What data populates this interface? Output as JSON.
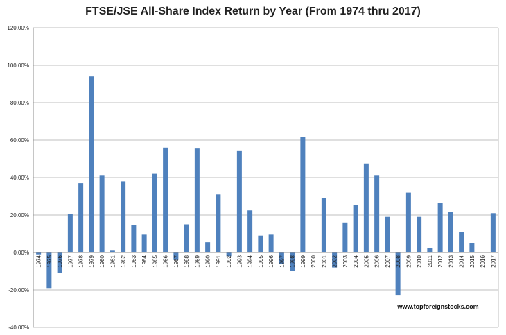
{
  "chart_data": {
    "type": "bar",
    "title": "FTSE/JSE All-Share Index Return by Year (From 1974 thru 2017)",
    "xlabel": "",
    "ylabel": "",
    "ylim": [
      -0.4,
      1.2
    ],
    "y_ticks": [
      -0.4,
      -0.2,
      0.0,
      0.2,
      0.4,
      0.6,
      0.8,
      1.0,
      1.2
    ],
    "y_tick_labels": [
      "-40.00%",
      "-20.00%",
      "0.00%",
      "20.00%",
      "40.00%",
      "60.00%",
      "80.00%",
      "100.00%",
      "120.00%"
    ],
    "grid": true,
    "bar_color": "#4f81bd",
    "categories": [
      "1974",
      "1975",
      "1976",
      "1977",
      "1978",
      "1979",
      "1980",
      "1981",
      "1982",
      "1983",
      "1984",
      "1985",
      "1986",
      "1987",
      "1988",
      "1989",
      "1990",
      "1991",
      "1992",
      "1993",
      "1994",
      "1995",
      "1996",
      "1997",
      "1998",
      "1999",
      "2000",
      "2001",
      "2002",
      "2003",
      "2004",
      "2005",
      "2006",
      "2007",
      "2008",
      "2009",
      "2010",
      "2011",
      "2012",
      "2013",
      "2014",
      "2015",
      "2016",
      "2017"
    ],
    "values": [
      -0.01,
      -0.19,
      -0.11,
      0.205,
      0.37,
      0.94,
      0.41,
      0.01,
      0.38,
      0.145,
      0.095,
      0.42,
      0.56,
      -0.04,
      0.15,
      0.555,
      0.055,
      0.31,
      -0.02,
      0.545,
      0.225,
      0.09,
      0.095,
      -0.06,
      -0.1,
      0.615,
      0.0,
      0.29,
      -0.08,
      0.16,
      0.255,
      0.475,
      0.41,
      0.19,
      -0.23,
      0.32,
      0.19,
      0.025,
      0.265,
      0.215,
      0.11,
      0.05,
      0.0,
      0.21
    ]
  },
  "watermark": "www.topforeignstocks.com"
}
